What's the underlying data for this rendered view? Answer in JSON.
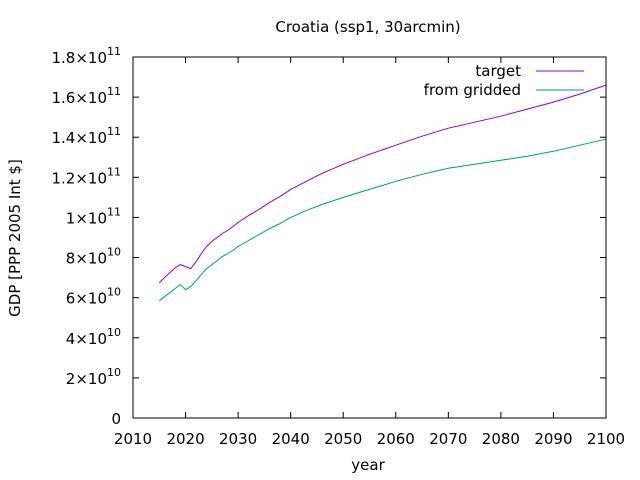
{
  "chart_data": {
    "type": "line",
    "title": "Croatia (ssp1, 30arcmin)",
    "xlabel": "year",
    "ylabel": "GDP [PPP 2005 Int $]",
    "xlim": [
      2010,
      2100
    ],
    "ylim": [
      0,
      180000000000
    ],
    "grid": false,
    "legend_position": "top-right",
    "x_ticks": [
      {
        "label": "2010",
        "value": 2010
      },
      {
        "label": "2020",
        "value": 2020
      },
      {
        "label": "2030",
        "value": 2030
      },
      {
        "label": "2040",
        "value": 2040
      },
      {
        "label": "2050",
        "value": 2050
      },
      {
        "label": "2060",
        "value": 2060
      },
      {
        "label": "2070",
        "value": 2070
      },
      {
        "label": "2080",
        "value": 2080
      },
      {
        "label": "2090",
        "value": 2090
      },
      {
        "label": "2100",
        "value": 2100
      }
    ],
    "y_ticks": [
      {
        "value": 0,
        "base": "0",
        "exp": ""
      },
      {
        "value": 20000000000,
        "base": "2×10",
        "exp": "10"
      },
      {
        "value": 40000000000,
        "base": "4×10",
        "exp": "10"
      },
      {
        "value": 60000000000,
        "base": "6×10",
        "exp": "10"
      },
      {
        "value": 80000000000,
        "base": "8×10",
        "exp": "10"
      },
      {
        "value": 100000000000,
        "base": "1×10",
        "exp": "11"
      },
      {
        "value": 120000000000,
        "base": "1.2×10",
        "exp": "11"
      },
      {
        "value": 140000000000,
        "base": "1.4×10",
        "exp": "11"
      },
      {
        "value": 160000000000,
        "base": "1.6×10",
        "exp": "11"
      },
      {
        "value": 180000000000,
        "base": "1.8×10",
        "exp": "11"
      }
    ],
    "series": [
      {
        "name": "target",
        "color": "#9400d3",
        "x": [
          2015,
          2016,
          2017,
          2018,
          2019,
          2020,
          2021,
          2022,
          2023,
          2024,
          2025,
          2026,
          2027,
          2028,
          2029,
          2030,
          2032,
          2034,
          2036,
          2038,
          2040,
          2043,
          2046,
          2050,
          2055,
          2060,
          2065,
          2070,
          2075,
          2080,
          2085,
          2090,
          2095,
          2100
        ],
        "values": [
          67500000000,
          70000000000,
          72500000000,
          74800000000,
          76500000000,
          75500000000,
          74500000000,
          78000000000,
          82000000000,
          85500000000,
          88000000000,
          90000000000,
          92000000000,
          93500000000,
          95500000000,
          97500000000,
          101000000000,
          104000000000,
          107500000000,
          110500000000,
          114000000000,
          118000000000,
          122000000000,
          126500000000,
          131500000000,
          136000000000,
          140500000000,
          144500000000,
          147500000000,
          150500000000,
          154000000000,
          157500000000,
          161500000000,
          166000000000
        ]
      },
      {
        "name": "from gridded",
        "color": "#009e73",
        "x": [
          2015,
          2016,
          2017,
          2018,
          2019,
          2020,
          2021,
          2022,
          2023,
          2024,
          2025,
          2026,
          2027,
          2028,
          2029,
          2030,
          2032,
          2034,
          2036,
          2038,
          2040,
          2043,
          2046,
          2050,
          2055,
          2060,
          2065,
          2070,
          2075,
          2080,
          2085,
          2090,
          2095,
          2100
        ],
        "values": [
          58500000000,
          60500000000,
          62500000000,
          64500000000,
          66500000000,
          64000000000,
          65500000000,
          68500000000,
          71500000000,
          74500000000,
          76500000000,
          78500000000,
          80500000000,
          82000000000,
          83500000000,
          85500000000,
          88500000000,
          91500000000,
          94500000000,
          97000000000,
          100000000000,
          103500000000,
          106500000000,
          110000000000,
          114000000000,
          118000000000,
          121500000000,
          124500000000,
          126500000000,
          128500000000,
          130500000000,
          133000000000,
          136000000000,
          139000000000
        ]
      }
    ]
  }
}
